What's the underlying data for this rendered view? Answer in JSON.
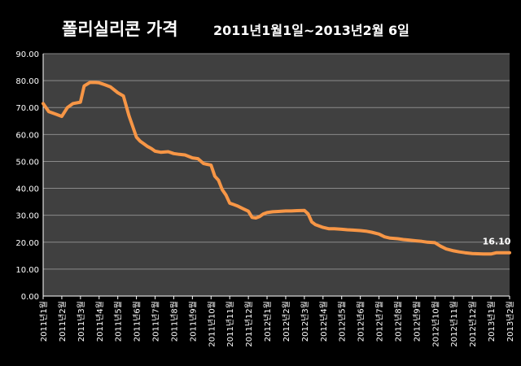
{
  "chart_data": {
    "type": "line",
    "title": "폴리실리콘 가격",
    "subtitle": "2011년1월1일~2013년2월  6일",
    "xlabel": "",
    "ylabel": "",
    "ylim": [
      0,
      90
    ],
    "yticks": [
      "0.00",
      "10.00",
      "20.00",
      "30.00",
      "40.00",
      "50.00",
      "60.00",
      "70.00",
      "80.00",
      "90.00"
    ],
    "categories": [
      "2011년1월",
      "2011년2월",
      "2011년3월",
      "2011년4월",
      "2011년5월",
      "2011년6월",
      "2011년7월",
      "2011년8월",
      "2011년9월",
      "2011년10월",
      "2011년11월",
      "2011년12월",
      "2012년1월",
      "2012년2월",
      "2012년3월",
      "2012년4월",
      "2012년5월",
      "2012년6월",
      "2012년7월",
      "2012년8월",
      "2012년9월",
      "2012년10월",
      "2012년11월",
      "2012년12월",
      "2013년1월",
      "2013년2월"
    ],
    "grid": true,
    "legend": "none",
    "series": [
      {
        "name": "",
        "color": "#f79646",
        "x": [
          0,
          0.3,
          0.7,
          1.0,
          1.3,
          1.6,
          2.0,
          2.2,
          2.5,
          2.8,
          3.0,
          3.3,
          3.6,
          4.0,
          4.3,
          4.6,
          4.8,
          5.0,
          5.2,
          5.4,
          5.6,
          5.8,
          6.0,
          6.3,
          6.7,
          7.0,
          7.3,
          7.6,
          8.0,
          8.3,
          8.6,
          9.0,
          9.2,
          9.4,
          9.6,
          9.8,
          10.0,
          10.2,
          10.4,
          10.7,
          11.0,
          11.2,
          11.4,
          11.6,
          11.8,
          12.0,
          12.3,
          12.6,
          13.0,
          13.3,
          13.6,
          14.0,
          14.2,
          14.4,
          14.6,
          15.0,
          15.3,
          15.6,
          16.0,
          16.3,
          16.6,
          17.0,
          17.3,
          17.6,
          18.0,
          18.3,
          18.6,
          19.0,
          19.3,
          19.6,
          20.0,
          20.3,
          20.6,
          21.0,
          21.3,
          21.6,
          22.0,
          22.3,
          22.6,
          23.0,
          23.3,
          23.6,
          24.0,
          24.3,
          24.6,
          25.0
        ],
        "values": [
          71.5,
          68.5,
          67.5,
          66.7,
          70,
          71.5,
          72,
          78,
          79.3,
          79.3,
          79.2,
          78.5,
          77.7,
          75.5,
          74.3,
          67,
          63,
          59,
          57.5,
          56.5,
          55.5,
          54.8,
          53.8,
          53.4,
          53.6,
          52.9,
          52.6,
          52.4,
          51.3,
          51,
          49.2,
          48.6,
          44.5,
          43,
          39.5,
          37.5,
          34.5,
          34,
          33.5,
          32.5,
          31.5,
          29.2,
          29,
          29.5,
          30.5,
          31,
          31.3,
          31.4,
          31.6,
          31.6,
          31.7,
          31.8,
          30.5,
          27.5,
          26.5,
          25.5,
          25,
          25,
          24.8,
          24.6,
          24.5,
          24.3,
          24.1,
          23.7,
          23,
          22,
          21.5,
          21.3,
          21,
          20.8,
          20.5,
          20.3,
          20,
          19.8,
          18.5,
          17.5,
          16.8,
          16.4,
          16.1,
          15.8,
          15.7,
          15.6,
          15.6,
          16.1,
          16.1,
          16.1
        ]
      }
    ],
    "data_labels": [
      {
        "category": "2013년2월",
        "value": 16.1,
        "text": "16.10"
      }
    ]
  }
}
